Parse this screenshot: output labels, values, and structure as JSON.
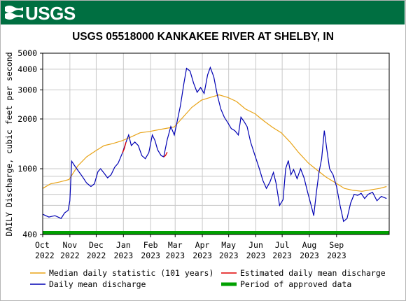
{
  "header": {
    "agency": "USGS",
    "colors": {
      "banner": "#006f41",
      "text": "#ffffff"
    }
  },
  "chart_data": {
    "type": "line",
    "title": "USGS 05518000 KANKAKEE RIVER AT SHELBY, IN",
    "ylabel": "DAILY Discharge, cubic feet per second",
    "y_scale": "log",
    "ylim": [
      400,
      5000
    ],
    "y_ticks": [
      "5000",
      "4000",
      "3000",
      "2000",
      "1000",
      "400"
    ],
    "y_tick_values": [
      5000,
      4000,
      3000,
      2000,
      1000,
      400
    ],
    "x_ticks": [
      {
        "month": "Oct",
        "year": "2022"
      },
      {
        "month": "Nov",
        "year": "2022"
      },
      {
        "month": "Dec",
        "year": "2022"
      },
      {
        "month": "Jan",
        "year": "2023"
      },
      {
        "month": "Feb",
        "year": "2023"
      },
      {
        "month": "Mar",
        "year": "2023"
      },
      {
        "month": "Apr",
        "year": "2023"
      },
      {
        "month": "May",
        "year": "2023"
      },
      {
        "month": "Jun",
        "year": "2023"
      },
      {
        "month": "Jul",
        "year": "2023"
      },
      {
        "month": "Aug",
        "year": "2023"
      },
      {
        "month": "Sep",
        "year": "2023"
      }
    ],
    "xlim": [
      "2022-10-01",
      "2023-10-31"
    ],
    "grid": true,
    "legend_placement": "bottom",
    "series": [
      {
        "name": "Median daily statistic (101 years)",
        "color": "#e8a317",
        "style": "line",
        "points": [
          [
            "2022-10-01",
            760
          ],
          [
            "2022-10-10",
            810
          ],
          [
            "2022-10-20",
            830
          ],
          [
            "2022-10-31",
            860
          ],
          [
            "2022-11-10",
            1040
          ],
          [
            "2022-11-20",
            1180
          ],
          [
            "2022-11-30",
            1280
          ],
          [
            "2022-12-10",
            1380
          ],
          [
            "2022-12-20",
            1420
          ],
          [
            "2022-12-31",
            1480
          ],
          [
            "2023-01-10",
            1560
          ],
          [
            "2023-01-20",
            1650
          ],
          [
            "2023-01-31",
            1680
          ],
          [
            "2023-02-10",
            1720
          ],
          [
            "2023-02-20",
            1760
          ],
          [
            "2023-02-28",
            1790
          ],
          [
            "2023-03-10",
            2050
          ],
          [
            "2023-03-20",
            2350
          ],
          [
            "2023-03-31",
            2600
          ],
          [
            "2023-04-10",
            2700
          ],
          [
            "2023-04-20",
            2800
          ],
          [
            "2023-04-30",
            2700
          ],
          [
            "2023-05-10",
            2550
          ],
          [
            "2023-05-20",
            2300
          ],
          [
            "2023-05-31",
            2150
          ],
          [
            "2023-06-10",
            1950
          ],
          [
            "2023-06-20",
            1780
          ],
          [
            "2023-06-30",
            1650
          ],
          [
            "2023-07-10",
            1450
          ],
          [
            "2023-07-20",
            1250
          ],
          [
            "2023-07-31",
            1080
          ],
          [
            "2023-08-10",
            980
          ],
          [
            "2023-08-20",
            890
          ],
          [
            "2023-08-31",
            820
          ],
          [
            "2023-09-10",
            760
          ],
          [
            "2023-09-20",
            740
          ],
          [
            "2023-09-30",
            730
          ],
          [
            "2023-10-10",
            745
          ],
          [
            "2023-10-20",
            760
          ],
          [
            "2023-10-28",
            780
          ]
        ]
      },
      {
        "name": "Daily mean discharge",
        "color": "#0000b3",
        "style": "line",
        "points": [
          [
            "2022-10-01",
            530
          ],
          [
            "2022-10-08",
            510
          ],
          [
            "2022-10-15",
            520
          ],
          [
            "2022-10-22",
            500
          ],
          [
            "2022-10-26",
            540
          ],
          [
            "2022-10-30",
            560
          ],
          [
            "2022-11-01",
            640
          ],
          [
            "2022-11-03",
            1110
          ],
          [
            "2022-11-06",
            1050
          ],
          [
            "2022-11-10",
            980
          ],
          [
            "2022-11-15",
            900
          ],
          [
            "2022-11-20",
            820
          ],
          [
            "2022-11-25",
            780
          ],
          [
            "2022-11-29",
            810
          ],
          [
            "2022-12-03",
            960
          ],
          [
            "2022-12-06",
            1000
          ],
          [
            "2022-12-10",
            940
          ],
          [
            "2022-12-14",
            880
          ],
          [
            "2022-12-18",
            920
          ],
          [
            "2022-12-22",
            1020
          ],
          [
            "2022-12-26",
            1080
          ],
          [
            "2022-12-31",
            1250
          ],
          [
            "2023-01-04",
            1450
          ],
          [
            "2023-01-07",
            1600
          ],
          [
            "2023-01-10",
            1380
          ],
          [
            "2023-01-14",
            1450
          ],
          [
            "2023-01-18",
            1380
          ],
          [
            "2023-01-22",
            1200
          ],
          [
            "2023-01-26",
            1150
          ],
          [
            "2023-01-30",
            1250
          ],
          [
            "2023-02-03",
            1600
          ],
          [
            "2023-02-06",
            1480
          ],
          [
            "2023-02-09",
            1300
          ],
          [
            "2023-02-13",
            1200
          ],
          [
            "2023-02-16",
            1180
          ],
          [
            "2023-02-20",
            1500
          ],
          [
            "2023-02-24",
            1800
          ],
          [
            "2023-02-28",
            1600
          ],
          [
            "2023-03-03",
            1900
          ],
          [
            "2023-03-07",
            2400
          ],
          [
            "2023-03-11",
            3300
          ],
          [
            "2023-03-14",
            4050
          ],
          [
            "2023-03-18",
            3900
          ],
          [
            "2023-03-22",
            3300
          ],
          [
            "2023-03-26",
            2900
          ],
          [
            "2023-03-30",
            3100
          ],
          [
            "2023-04-03",
            2850
          ],
          [
            "2023-04-07",
            3700
          ],
          [
            "2023-04-10",
            4100
          ],
          [
            "2023-04-14",
            3600
          ],
          [
            "2023-04-18",
            2800
          ],
          [
            "2023-04-22",
            2300
          ],
          [
            "2023-04-26",
            2050
          ],
          [
            "2023-04-30",
            1900
          ],
          [
            "2023-05-04",
            1750
          ],
          [
            "2023-05-08",
            1700
          ],
          [
            "2023-05-12",
            1600
          ],
          [
            "2023-05-15",
            2050
          ],
          [
            "2023-05-18",
            1950
          ],
          [
            "2023-05-22",
            1800
          ],
          [
            "2023-05-26",
            1450
          ],
          [
            "2023-05-31",
            1200
          ],
          [
            "2023-06-05",
            1000
          ],
          [
            "2023-06-09",
            850
          ],
          [
            "2023-06-13",
            760
          ],
          [
            "2023-06-17",
            830
          ],
          [
            "2023-06-21",
            950
          ],
          [
            "2023-06-24",
            820
          ],
          [
            "2023-06-28",
            600
          ],
          [
            "2023-07-02",
            650
          ],
          [
            "2023-07-05",
            1000
          ],
          [
            "2023-07-08",
            1120
          ],
          [
            "2023-07-11",
            920
          ],
          [
            "2023-07-14",
            990
          ],
          [
            "2023-07-18",
            870
          ],
          [
            "2023-07-22",
            1000
          ],
          [
            "2023-07-26",
            880
          ],
          [
            "2023-07-30",
            720
          ],
          [
            "2023-08-03",
            600
          ],
          [
            "2023-08-06",
            520
          ],
          [
            "2023-08-09",
            720
          ],
          [
            "2023-08-12",
            950
          ],
          [
            "2023-08-15",
            1150
          ],
          [
            "2023-08-18",
            1700
          ],
          [
            "2023-08-21",
            1300
          ],
          [
            "2023-08-24",
            1000
          ],
          [
            "2023-08-28",
            920
          ],
          [
            "2023-09-01",
            780
          ],
          [
            "2023-09-05",
            600
          ],
          [
            "2023-09-09",
            480
          ],
          [
            "2023-09-13",
            500
          ],
          [
            "2023-09-17",
            620
          ],
          [
            "2023-09-21",
            700
          ],
          [
            "2023-09-25",
            690
          ],
          [
            "2023-09-29",
            710
          ],
          [
            "2023-10-03",
            660
          ],
          [
            "2023-10-07",
            700
          ],
          [
            "2023-10-12",
            720
          ],
          [
            "2023-10-17",
            640
          ],
          [
            "2023-10-22",
            680
          ],
          [
            "2023-10-28",
            660
          ]
        ]
      },
      {
        "name": "Estimated daily mean discharge",
        "color": "#e00000",
        "style": "line",
        "points": [
          [
            "2022-12-31",
            1250
          ],
          [
            "2023-01-02",
            1320
          ],
          [
            "2023-01-04",
            1450
          ],
          [
            "2023-02-16",
            1180
          ],
          [
            "2023-02-18",
            1200
          ],
          [
            "2023-02-20",
            1260
          ]
        ]
      },
      {
        "name": "Period of approved data",
        "color": "#00a000",
        "style": "band",
        "range": [
          "2022-10-01",
          "2023-10-31"
        ]
      }
    ]
  }
}
